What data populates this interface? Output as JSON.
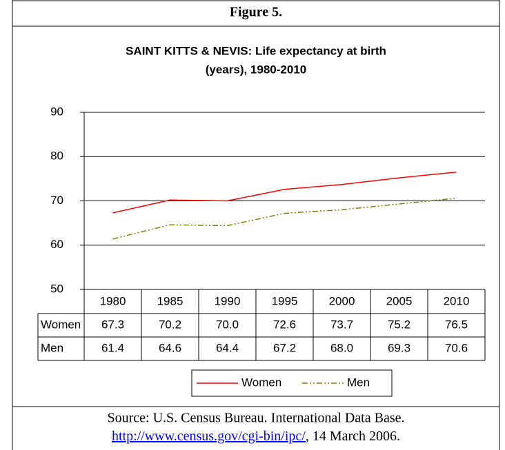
{
  "figure_label": "Figure 5.",
  "chart_data": {
    "type": "line",
    "title": [
      "SAINT KITTS & NEVIS: Life expectancy at birth",
      "(years), 1980-2010"
    ],
    "categories": [
      "1980",
      "1985",
      "1990",
      "1995",
      "2000",
      "2005",
      "2010"
    ],
    "series": [
      {
        "name": "Women",
        "color": "#ff0000",
        "values": [
          67.3,
          70.2,
          70,
          72.6,
          73.7,
          75.2,
          76.5
        ],
        "value_labels": [
          "67.3",
          "70.2",
          "70.0",
          "72.6",
          "73.7",
          "75.2",
          "76.5"
        ]
      },
      {
        "name": "Men",
        "color": "#808000",
        "values": [
          61.4,
          64.6,
          64.4,
          67.2,
          68,
          69.3,
          70.6
        ],
        "value_labels": [
          "61.4",
          "64.6",
          "64.4",
          "67.2",
          "68.0",
          "69.3",
          "70.6"
        ]
      }
    ],
    "ylim": [
      50,
      90
    ],
    "yticks": [
      50,
      60,
      70,
      80,
      90
    ],
    "grid": true,
    "legend": "bottom"
  },
  "source": "Source: U.S. Census Bureau. International Data Base.",
  "source_link": "http://www.census.gov/cgi-bin/ipc/",
  "source_date": ", 14 March 2006."
}
